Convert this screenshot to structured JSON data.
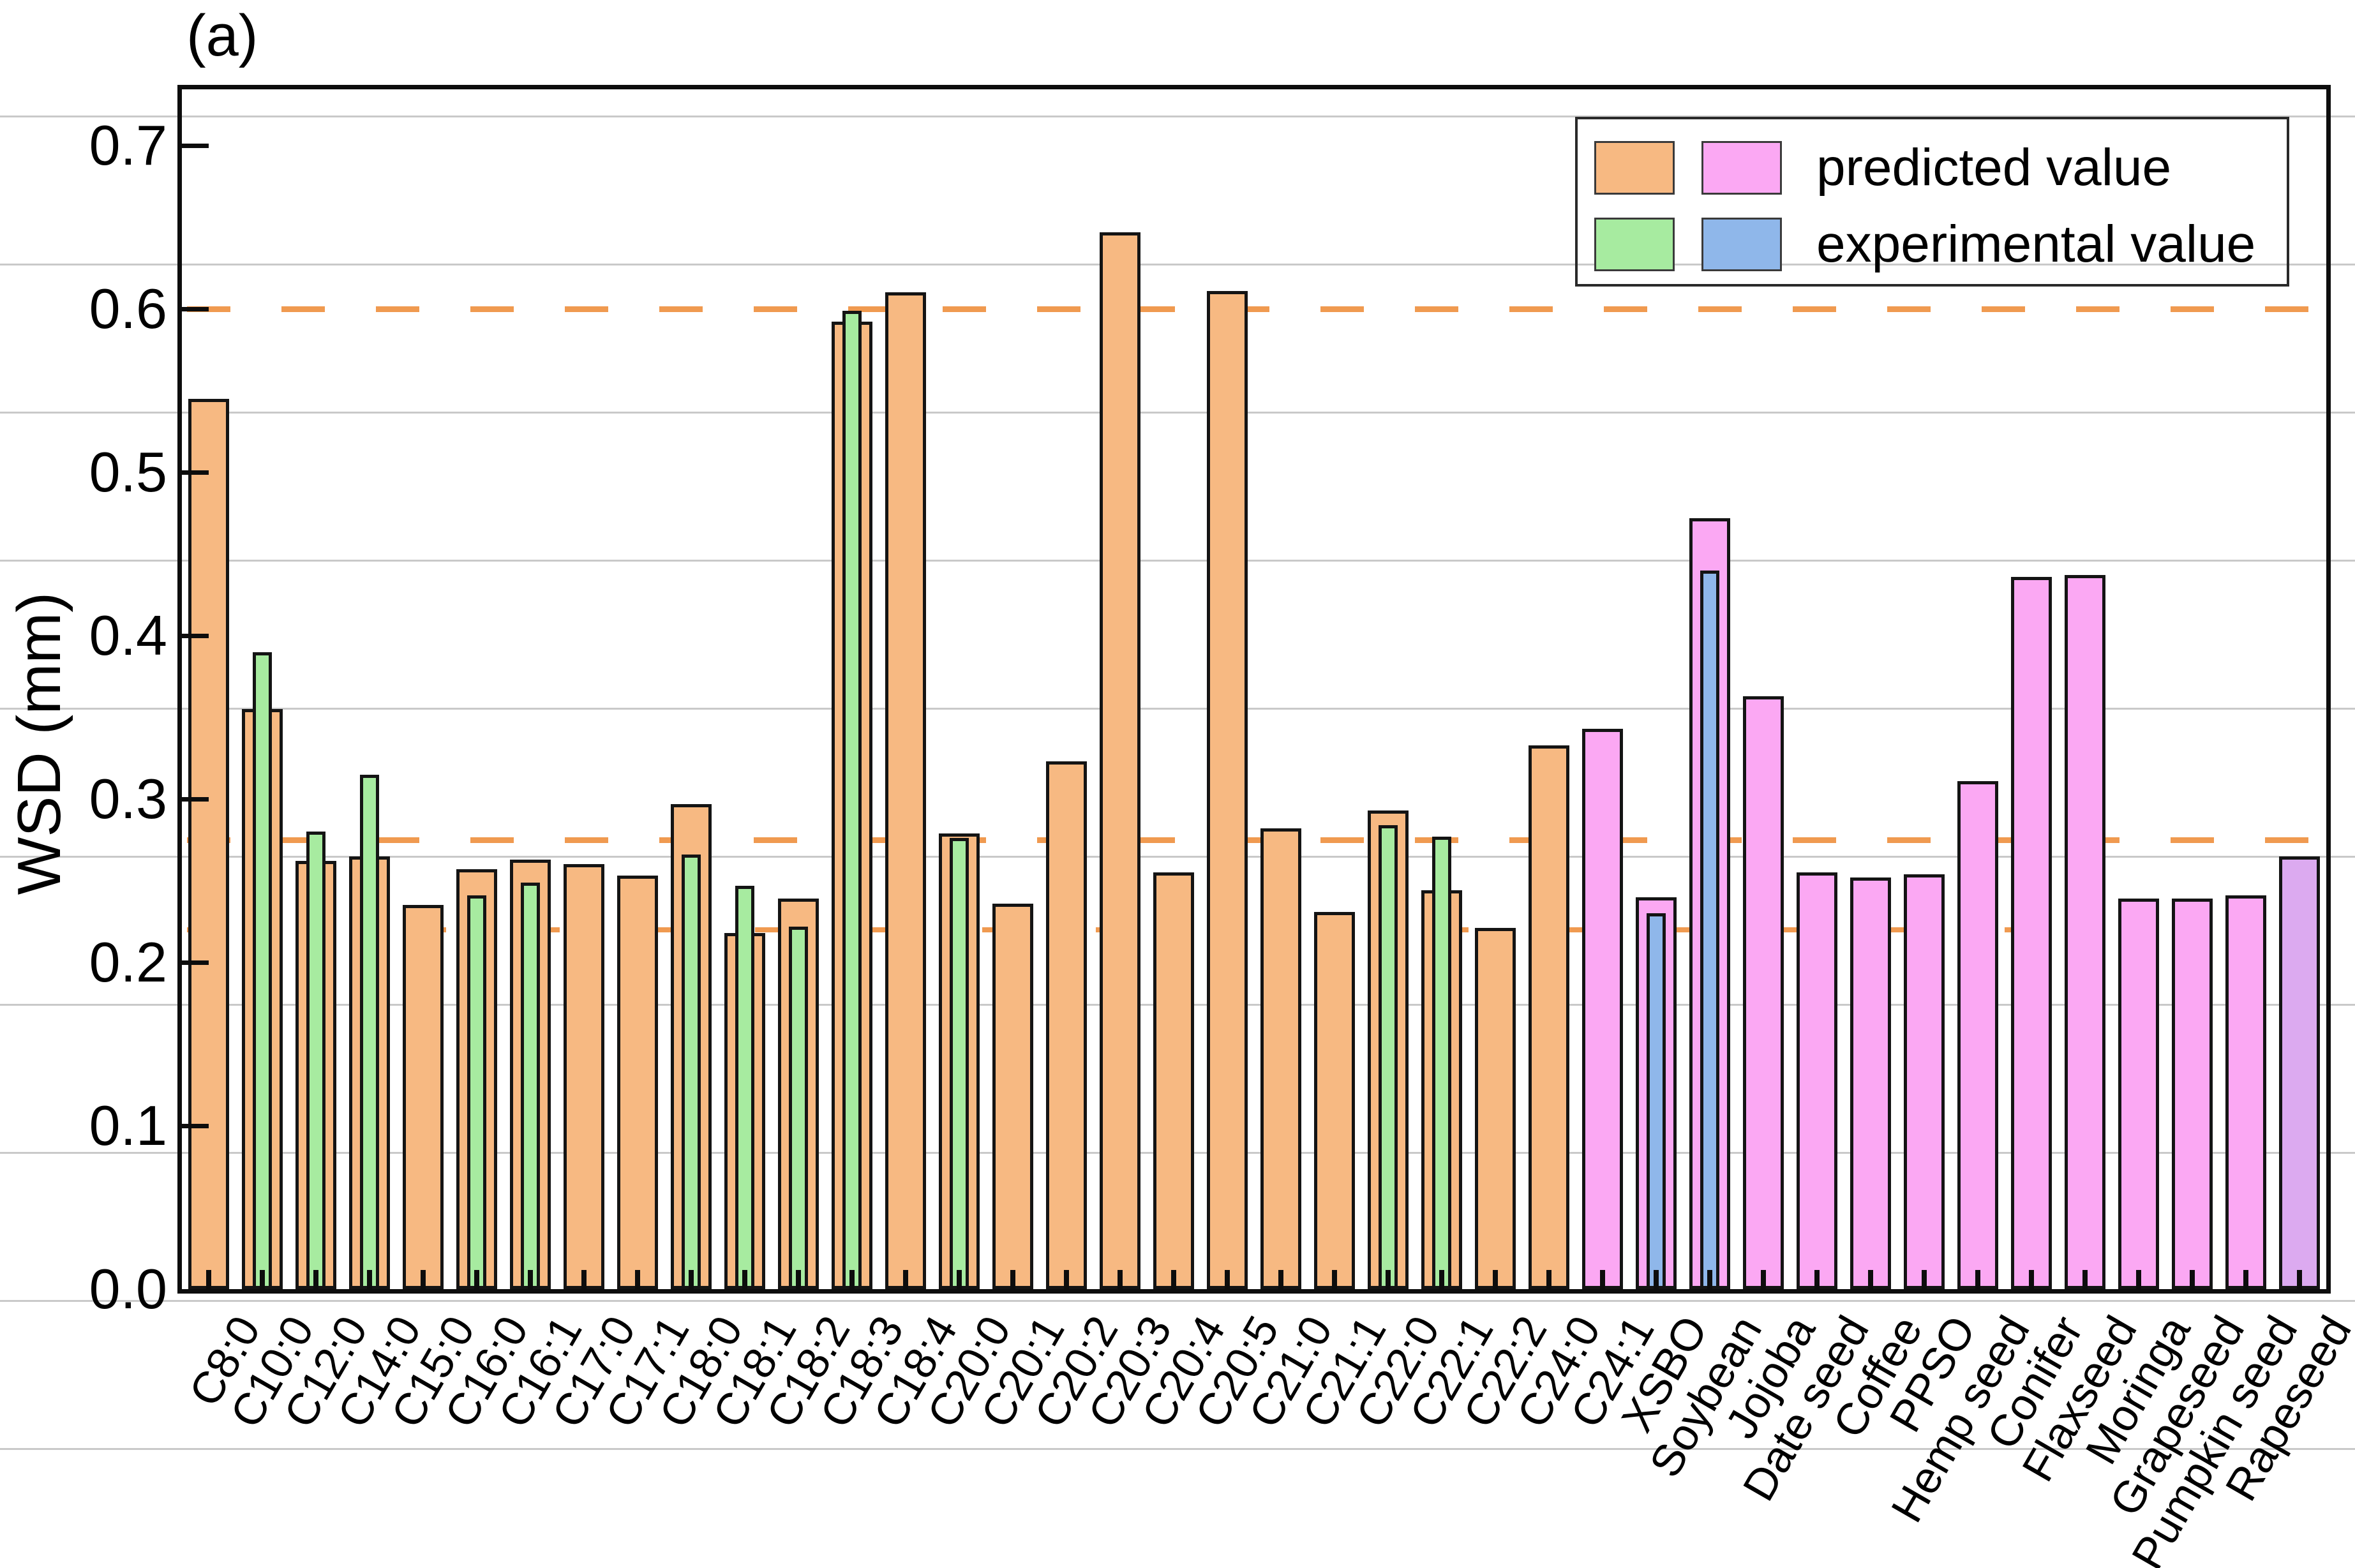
{
  "figure_label": "(a)",
  "axes": {
    "ylabel": "WSD (mm)",
    "yticks": [
      "0.0",
      "0.1",
      "0.2",
      "0.3",
      "0.4",
      "0.5",
      "0.6",
      "0.7"
    ],
    "ytick_values": [
      0.0,
      0.1,
      0.2,
      0.3,
      0.4,
      0.5,
      0.6,
      0.7
    ]
  },
  "legend": [
    {
      "label": "predicted value",
      "swatch_colors": [
        "predicted_fa",
        "predicted_oil"
      ]
    },
    {
      "label": "experimental value",
      "swatch_colors": [
        "experimental_fa",
        "experimental_oil"
      ]
    }
  ],
  "colors": {
    "predicted_fa": "#f7b982",
    "predicted_oil": "#fba8f3",
    "predicted_rapeseed": "#dcaaf0",
    "experimental_fa": "#a7eba0",
    "experimental_oil": "#8fb7ea",
    "reference_dash": "#f09a50",
    "bar_border": "#141414"
  },
  "chart_data": {
    "type": "bar",
    "title": "",
    "xlabel": "",
    "ylabel": "WSD (mm)",
    "ylim": [
      0,
      0.734
    ],
    "grid": "faint horizontal page lines",
    "legend_position": "upper right",
    "categories": [
      "C8:0",
      "C10:0",
      "C12:0",
      "C14:0",
      "C15:0",
      "C16:0",
      "C16:1",
      "C17:0",
      "C17:1",
      "C18:0",
      "C18:1",
      "C18:2",
      "C18:3",
      "C18:4",
      "C20:0",
      "C20:1",
      "C20:2",
      "C20:3",
      "C20:4",
      "C20:5",
      "C21:0",
      "C21:1",
      "C22:0",
      "C22:1",
      "C22:2",
      "C24:0",
      "C24:1",
      "XSBO",
      "Soybean",
      "Jojoba",
      "Date seed",
      "Coffee",
      "PPSO",
      "Hemp seed",
      "Conifer",
      "Flaxseed",
      "Moringa",
      "Grapeseed",
      "Pumpkin seed",
      "Rapeseed"
    ],
    "series": [
      {
        "name": "predicted value",
        "values": [
          0.545,
          0.355,
          0.262,
          0.265,
          0.235,
          0.257,
          0.263,
          0.26,
          0.253,
          0.297,
          0.218,
          0.239,
          0.592,
          0.61,
          0.279,
          0.236,
          0.323,
          0.647,
          0.255,
          0.611,
          0.282,
          0.231,
          0.293,
          0.244,
          0.221,
          0.333,
          0.343,
          0.24,
          0.472,
          0.363,
          0.255,
          0.252,
          0.254,
          0.311,
          0.436,
          0.437,
          0.239,
          0.239,
          0.241,
          0.265
        ],
        "color_keys": [
          "predicted_fa",
          "predicted_fa",
          "predicted_fa",
          "predicted_fa",
          "predicted_fa",
          "predicted_fa",
          "predicted_fa",
          "predicted_fa",
          "predicted_fa",
          "predicted_fa",
          "predicted_fa",
          "predicted_fa",
          "predicted_fa",
          "predicted_fa",
          "predicted_fa",
          "predicted_fa",
          "predicted_fa",
          "predicted_fa",
          "predicted_fa",
          "predicted_fa",
          "predicted_fa",
          "predicted_fa",
          "predicted_fa",
          "predicted_fa",
          "predicted_fa",
          "predicted_fa",
          "predicted_oil",
          "predicted_oil",
          "predicted_oil",
          "predicted_oil",
          "predicted_oil",
          "predicted_oil",
          "predicted_oil",
          "predicted_oil",
          "predicted_oil",
          "predicted_oil",
          "predicted_oil",
          "predicted_oil",
          "predicted_oil",
          "predicted_rapeseed"
        ]
      },
      {
        "name": "experimental value",
        "values": [
          null,
          0.39,
          0.28,
          0.315,
          null,
          0.241,
          0.249,
          null,
          null,
          0.266,
          0.247,
          0.222,
          0.599,
          null,
          0.276,
          null,
          null,
          null,
          null,
          null,
          null,
          null,
          0.284,
          0.277,
          null,
          null,
          null,
          0.23,
          0.44,
          null,
          null,
          null,
          null,
          null,
          null,
          null,
          null,
          null,
          null,
          null
        ],
        "color_keys": [
          "experimental_fa",
          "experimental_fa",
          "experimental_fa",
          "experimental_fa",
          "experimental_fa",
          "experimental_fa",
          "experimental_fa",
          "experimental_fa",
          "experimental_fa",
          "experimental_fa",
          "experimental_fa",
          "experimental_fa",
          "experimental_fa",
          "experimental_fa",
          "experimental_fa",
          "experimental_fa",
          "experimental_fa",
          "experimental_fa",
          "experimental_fa",
          "experimental_fa",
          "experimental_fa",
          "experimental_fa",
          "experimental_fa",
          "experimental_fa",
          "experimental_fa",
          "experimental_fa",
          "experimental_oil",
          "experimental_oil",
          "experimental_oil",
          "experimental_oil",
          "experimental_oil",
          "experimental_oil",
          "experimental_oil",
          "experimental_oil",
          "experimental_oil",
          "experimental_oil",
          "experimental_oil",
          "experimental_oil",
          "experimental_oil",
          "experimental_oil"
        ]
      }
    ],
    "reference_lines": [
      {
        "value": 0.6,
        "style": "dashed",
        "color_key": "reference_dash"
      },
      {
        "value": 0.275,
        "style": "dashed",
        "color_key": "reference_dash"
      },
      {
        "value": 0.22,
        "style": "dashed-short",
        "color_key": "reference_dash"
      }
    ]
  }
}
